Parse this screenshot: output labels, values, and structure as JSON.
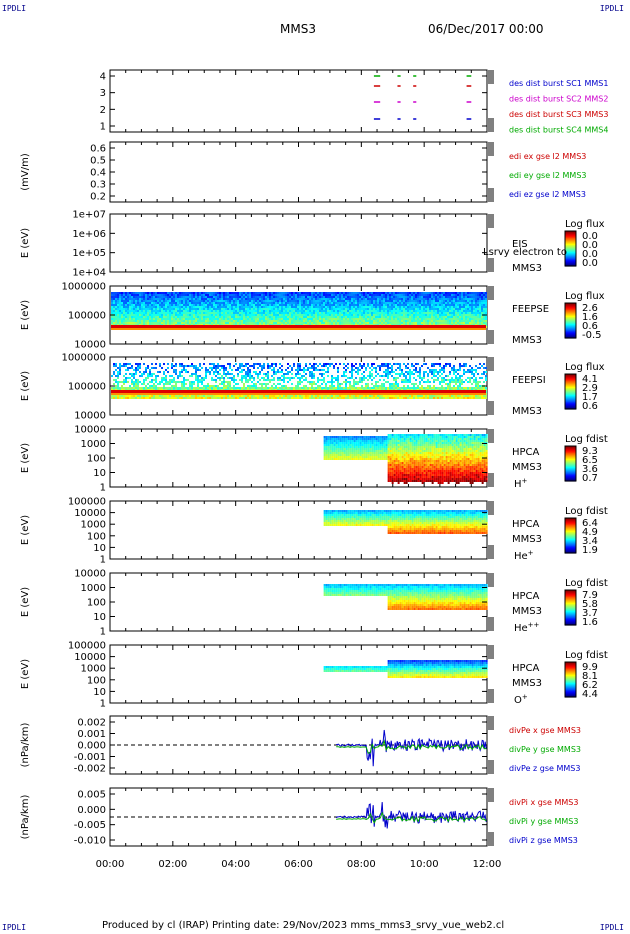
{
  "corners": {
    "tl": "IPDLI",
    "tr": "IPDLI",
    "bl": "IPDLI",
    "br": "IPDLI"
  },
  "header": {
    "spacecraft": "MMS3",
    "date": "06/Dec/2017 00:00"
  },
  "footer": {
    "text": "Produced by cl (IRAP)   Printing date: 29/Nov/2023   mms_mms3_srvy_vue_web2.cl"
  },
  "time_axis": {
    "ticks": [
      "00:00",
      "02:00",
      "04:00",
      "06:00",
      "08:00",
      "10:00",
      "12:00"
    ]
  },
  "chart_data": [
    {
      "id": "p1",
      "type": "line",
      "title": "",
      "ylabel": "",
      "yticks": [
        "4",
        "3",
        "2",
        "1"
      ],
      "legend": [
        {
          "text": "des dist burst SC1 MMS1",
          "color": "#0000cc"
        },
        {
          "text": "des dist burst SC2 MMS2",
          "color": "#cc00cc"
        },
        {
          "text": "des dist burst SC3 MMS3",
          "color": "#cc0000"
        },
        {
          "text": "des dist burst SC4 MMS4",
          "color": "#00aa00"
        }
      ]
    },
    {
      "id": "p2",
      "type": "line",
      "ylabel": "(mV/m)",
      "yticks": [
        "0.6",
        "0.5",
        "0.4",
        "0.3",
        "0.2"
      ],
      "legend": [
        {
          "text": "edi ex gse l2 MMS3",
          "color": "#cc0000"
        },
        {
          "text": "edi ey gse l2 MMS3",
          "color": "#00aa00"
        },
        {
          "text": "edi ez gse l2 MMS3",
          "color": "#0000cc"
        }
      ]
    },
    {
      "id": "p3",
      "type": "heatmap",
      "ylabel": "E (eV)",
      "yticks": [
        "1e+07",
        "1e+06",
        "1e+05",
        "1e+04"
      ],
      "instrument": "EIS",
      "extra": "Lsrvy electron to",
      "sc": "MMS3",
      "cbar_title": "Log flux",
      "cbar_ticks": [
        "0.0",
        "0.0",
        "0.0",
        "0.0"
      ]
    },
    {
      "id": "p4",
      "type": "heatmap",
      "ylabel": "E (eV)",
      "yticks": [
        "1000000",
        "100000",
        "10000"
      ],
      "instrument": "FEEPSE",
      "sc": "MMS3",
      "cbar_title": "Log flux",
      "cbar_ticks": [
        "2.6",
        "1.6",
        "0.6",
        "-0.5"
      ]
    },
    {
      "id": "p5",
      "type": "heatmap",
      "ylabel": "E (eV)",
      "yticks": [
        "1000000",
        "100000",
        "10000"
      ],
      "instrument": "FEEPSI",
      "sc": "MMS3",
      "cbar_title": "Log flux",
      "cbar_ticks": [
        "4.1",
        "2.9",
        "1.7",
        "0.6"
      ]
    },
    {
      "id": "p6",
      "type": "heatmap",
      "ylabel": "E (eV)",
      "yticks": [
        "10000",
        "1000",
        "100",
        "10",
        "1"
      ],
      "instrument": "HPCA",
      "sc": "MMS3",
      "species": "H",
      "species_sup": "+",
      "cbar_title": "Log fdist",
      "cbar_ticks": [
        "9.3",
        "6.5",
        "3.6",
        "0.7"
      ]
    },
    {
      "id": "p7",
      "type": "heatmap",
      "ylabel": "E (eV)",
      "yticks": [
        "100000",
        "10000",
        "1000",
        "100",
        "10",
        "1"
      ],
      "instrument": "HPCA",
      "sc": "MMS3",
      "species": "He",
      "species_sup": "+",
      "cbar_title": "Log fdist",
      "cbar_ticks": [
        "6.4",
        "4.9",
        "3.4",
        "1.9"
      ]
    },
    {
      "id": "p8",
      "type": "heatmap",
      "ylabel": "E (eV)",
      "yticks": [
        "10000",
        "1000",
        "100",
        "10",
        "1"
      ],
      "instrument": "HPCA",
      "sc": "MMS3",
      "species": "He",
      "species_sup": "++",
      "cbar_title": "Log fdist",
      "cbar_ticks": [
        "7.9",
        "5.8",
        "3.7",
        "1.6"
      ]
    },
    {
      "id": "p9",
      "type": "heatmap",
      "ylabel": "E (eV)",
      "yticks": [
        "100000",
        "10000",
        "1000",
        "100",
        "10",
        "1"
      ],
      "instrument": "HPCA",
      "sc": "MMS3",
      "species": "O",
      "species_sup": "+",
      "cbar_title": "Log fdist",
      "cbar_ticks": [
        "9.9",
        "8.1",
        "6.2",
        "4.4"
      ]
    },
    {
      "id": "p10",
      "type": "line",
      "ylabel": "(nPa/km)",
      "yticks": [
        "0.002",
        "0.001",
        "0.000",
        "-0.001",
        "-0.002"
      ],
      "legend": [
        {
          "text": "divPe x gse MMS3",
          "color": "#cc0000"
        },
        {
          "text": "divPe y gse MMS3",
          "color": "#00aa00"
        },
        {
          "text": "divPe z gse MMS3",
          "color": "#0000cc"
        }
      ]
    },
    {
      "id": "p11",
      "type": "line",
      "ylabel": "(nPa/km)",
      "yticks": [
        "0.005",
        "0.000",
        "-0.005",
        "-0.010"
      ],
      "legend": [
        {
          "text": "divPi x gse MMS3",
          "color": "#cc0000"
        },
        {
          "text": "divPi y gse MMS3",
          "color": "#00aa00"
        },
        {
          "text": "divPi z gse MMS3",
          "color": "#0000cc"
        }
      ]
    }
  ]
}
